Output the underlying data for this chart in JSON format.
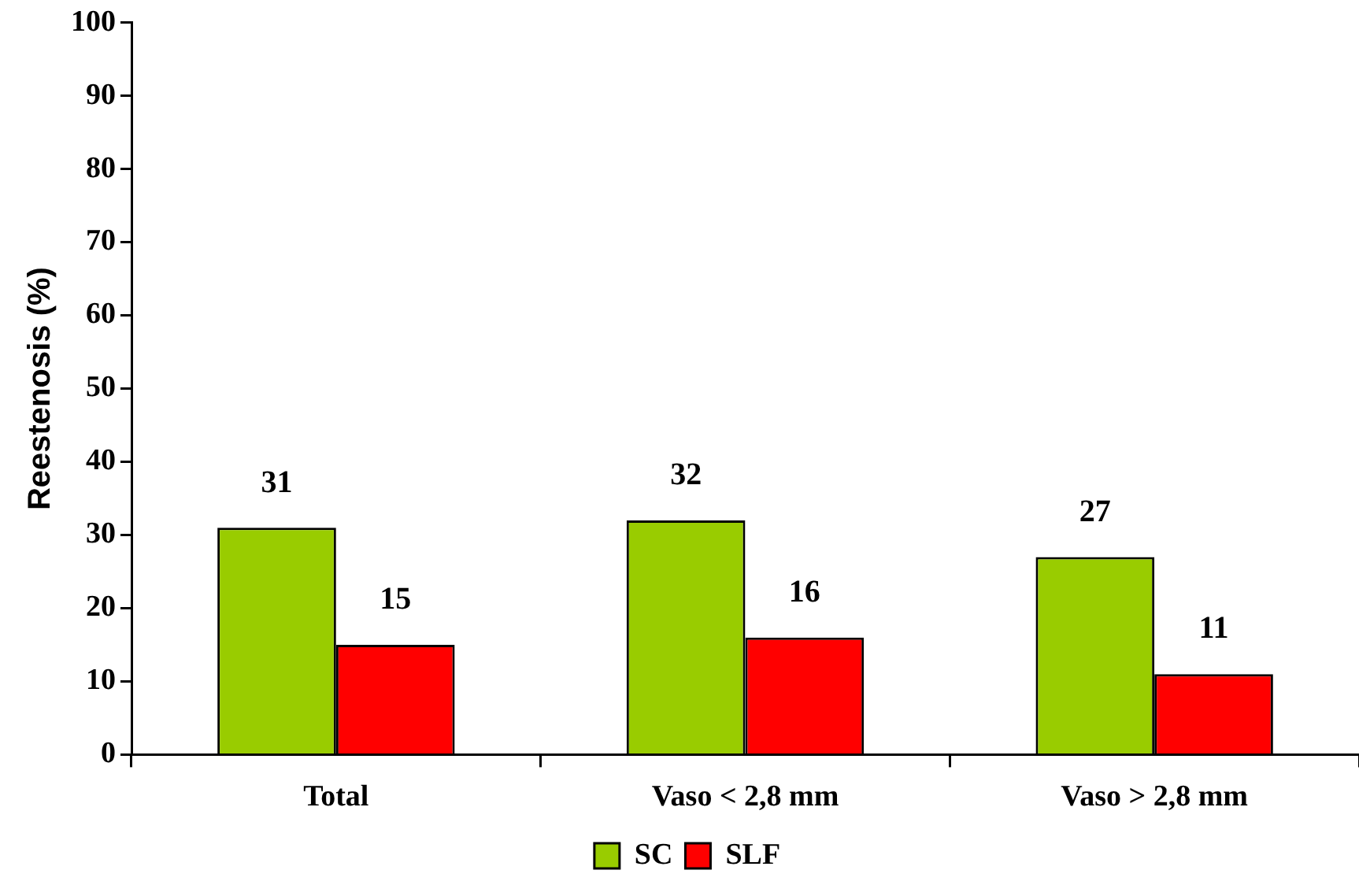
{
  "chart_data": {
    "type": "bar",
    "ylabel": "Reestenosis (%)",
    "categories": [
      "Total",
      "Vaso < 2,8 mm",
      "Vaso > 2,8 mm"
    ],
    "series": [
      {
        "name": "SC",
        "color": "#99cc00",
        "values": [
          31,
          32,
          27
        ]
      },
      {
        "name": "SLF",
        "color": "#ff0000",
        "values": [
          15,
          16,
          11
        ]
      }
    ],
    "ylim": [
      0,
      100
    ],
    "yticks": [
      0,
      10,
      20,
      30,
      40,
      50,
      60,
      70,
      80,
      90,
      100
    ],
    "grid": false,
    "legend": "bottom",
    "data_labels": true
  }
}
